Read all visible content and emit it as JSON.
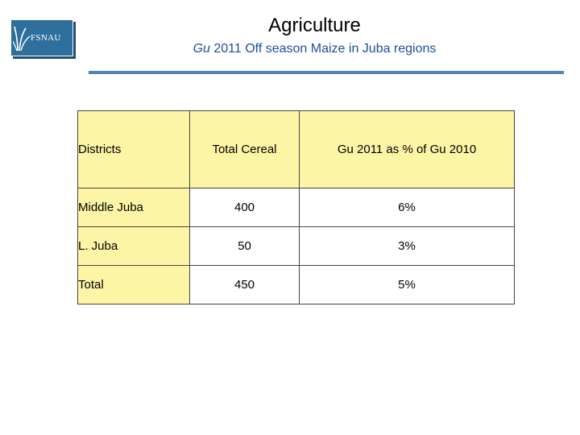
{
  "logo": {
    "text": "FSNAU"
  },
  "header": {
    "title": "Agriculture",
    "subtitle_italic": "Gu",
    "subtitle_rest": " 2011 Off season Maize in Juba regions"
  },
  "table": {
    "columns": [
      "Districts",
      "Total Cereal",
      "Gu 2011 as % of Gu 2010"
    ],
    "rows": [
      [
        "Middle Juba",
        "400",
        "6%"
      ],
      [
        "L. Juba",
        "50",
        "3%"
      ],
      [
        "Total",
        "450",
        "5%"
      ]
    ]
  },
  "colors": {
    "header_fill": "#fdf5a6",
    "accent": "#2e6f9e",
    "subtitle": "#1f4e99"
  }
}
